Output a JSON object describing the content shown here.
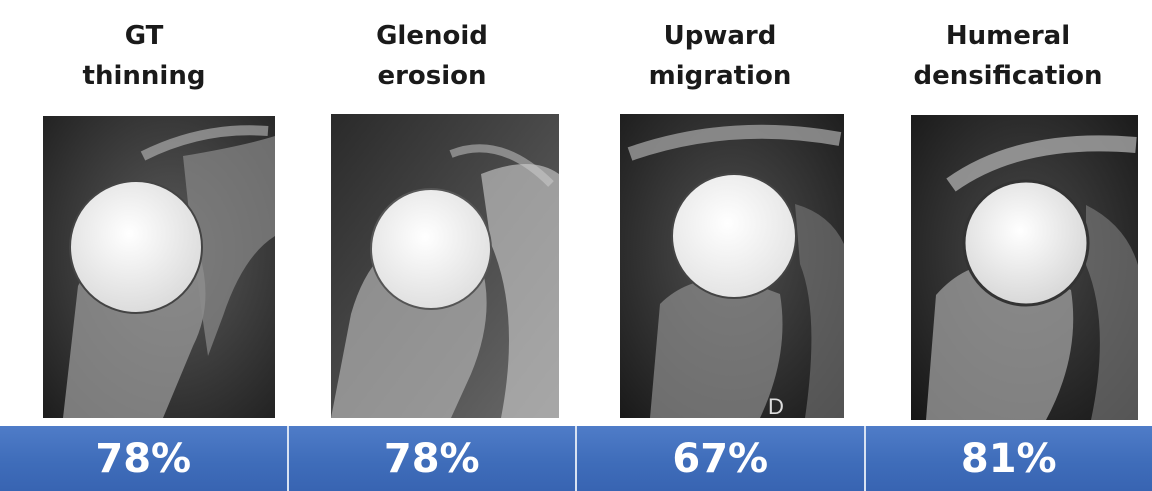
{
  "panels": [
    {
      "title": "GT\nthinning",
      "percent": "78%"
    },
    {
      "title": "Glenoid\nerosion",
      "percent": "78%"
    },
    {
      "title": "Upward\nmigration",
      "percent": "67%",
      "marker": "D"
    },
    {
      "title": "Humeral\ndensification",
      "percent": "81%"
    }
  ],
  "colors": {
    "bar": "#3f6dba",
    "bar_divider": "#d8e2f2",
    "title": "#1a1a1a"
  }
}
